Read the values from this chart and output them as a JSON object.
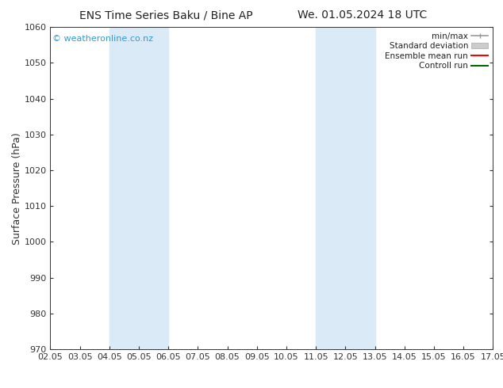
{
  "title_left": "ENS Time Series Baku / Bine AP",
  "title_right": "We. 01.05.2024 18 UTC",
  "ylabel": "Surface Pressure (hPa)",
  "xlabel_ticks": [
    "02.05",
    "03.05",
    "04.05",
    "05.05",
    "06.05",
    "07.05",
    "08.05",
    "09.05",
    "10.05",
    "11.05",
    "12.05",
    "13.05",
    "14.05",
    "15.05",
    "16.05",
    "17.05"
  ],
  "xlim": [
    0,
    15
  ],
  "ylim": [
    970,
    1060
  ],
  "yticks": [
    970,
    980,
    990,
    1000,
    1010,
    1020,
    1030,
    1040,
    1050,
    1060
  ],
  "shaded_regions": [
    {
      "xstart": 2,
      "xend": 4,
      "color": "#daeaf7"
    },
    {
      "xstart": 9,
      "xend": 11,
      "color": "#daeaf7"
    }
  ],
  "watermark": "© weatheronline.co.nz",
  "watermark_color": "#3399cc",
  "legend_entries": [
    {
      "label": "min/max"
    },
    {
      "label": "Standard deviation"
    },
    {
      "label": "Ensemble mean run"
    },
    {
      "label": "Controll run"
    }
  ],
  "bg_color": "#ffffff",
  "spine_color": "#333333",
  "tick_color": "#333333",
  "title_fontsize": 10,
  "tick_fontsize": 8,
  "ylabel_fontsize": 9,
  "legend_fontsize": 7.5,
  "watermark_fontsize": 8
}
